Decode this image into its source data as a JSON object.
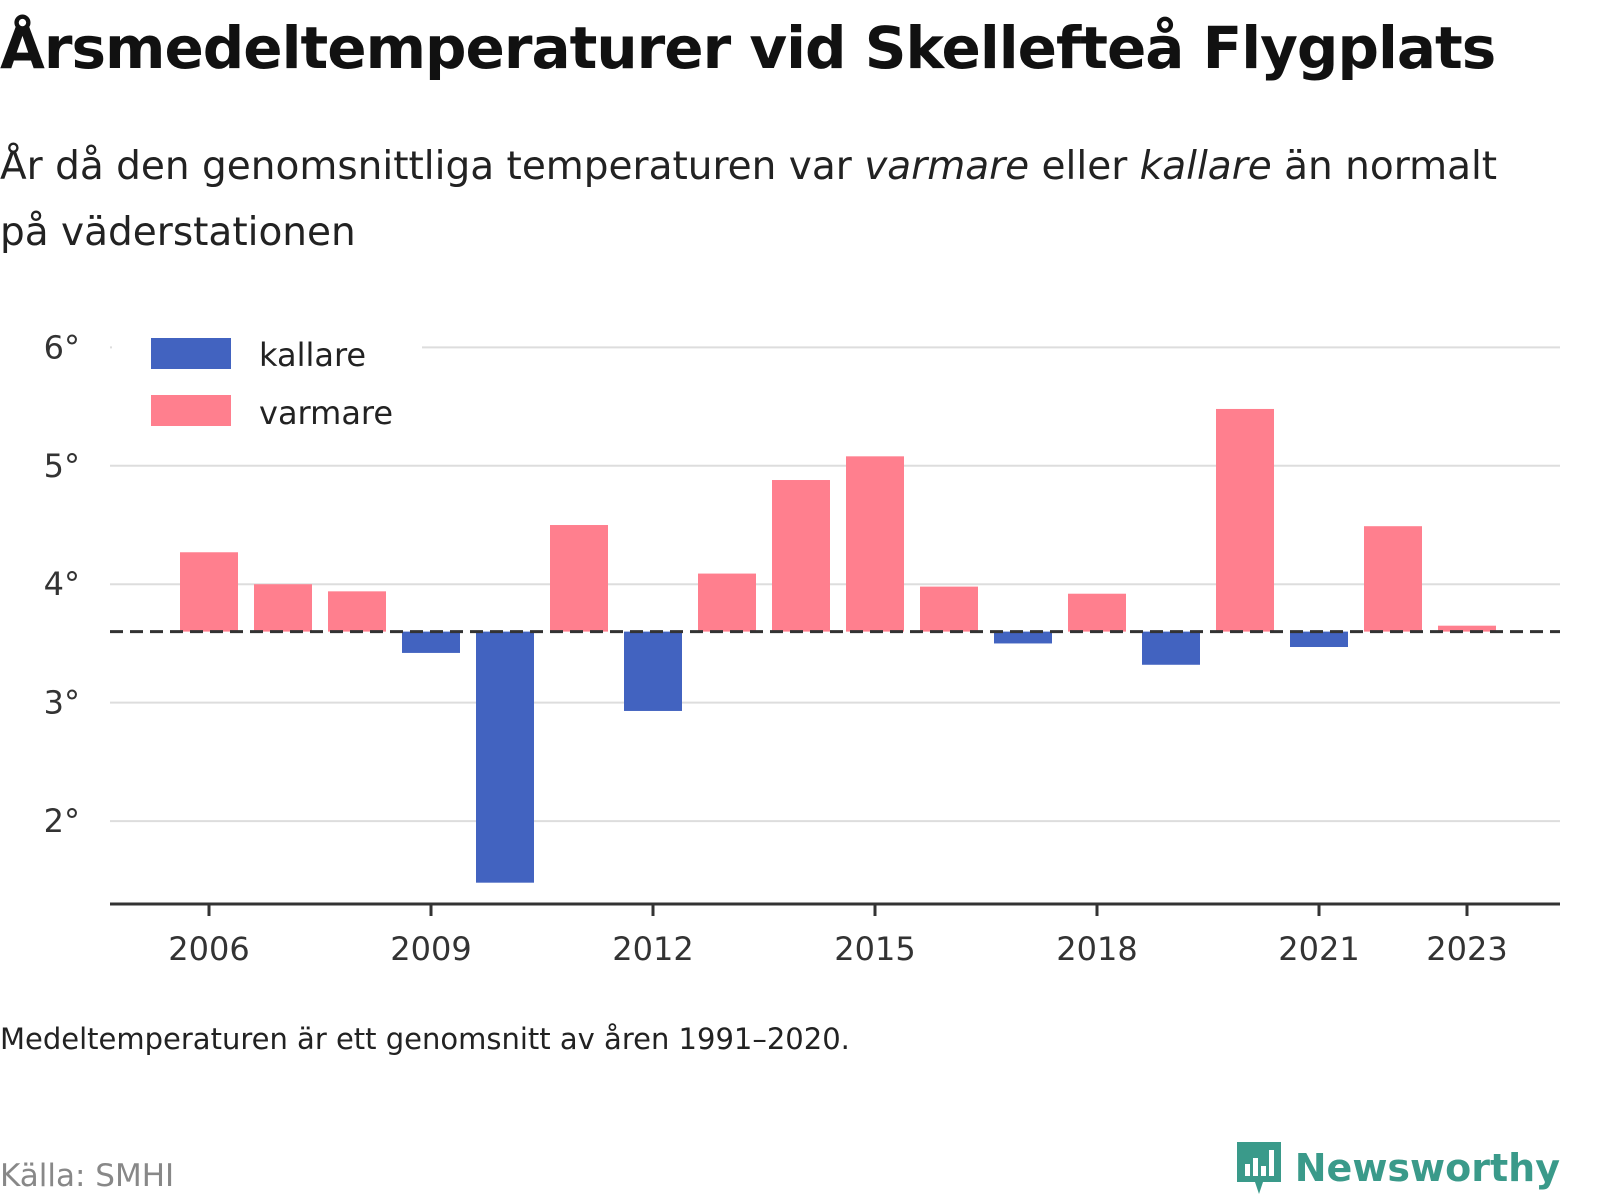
{
  "header": {
    "title": "Årsmedeltemperaturer vid Skellefteå Flygplats",
    "subtitle_part1": "År då den genomsnittliga temperaturen var ",
    "subtitle_em1": "varmare",
    "subtitle_part2": " eller ",
    "subtitle_em2": "kallare",
    "subtitle_part3": " än normalt på väderstationen"
  },
  "footer": {
    "note": "Medeltemperaturen är ett genomsnitt av åren 1991–2020.",
    "source": "Källa: SMHI",
    "brand": "Newsworthy"
  },
  "chart_data": {
    "type": "bar",
    "baseline": 3.6,
    "ylim": [
      1.3,
      6.4
    ],
    "yticks": [
      2,
      3,
      4,
      5,
      6
    ],
    "ytick_labels": [
      "2°",
      "3°",
      "4°",
      "5°",
      "6°"
    ],
    "xtick_labels": [
      "2006",
      "2009",
      "2012",
      "2015",
      "2018",
      "2021",
      "2023"
    ],
    "xticks": [
      2006,
      2009,
      2012,
      2015,
      2018,
      2021,
      2023
    ],
    "categories": [
      2006,
      2007,
      2008,
      2009,
      2010,
      2011,
      2012,
      2013,
      2014,
      2015,
      2016,
      2017,
      2018,
      2019,
      2020,
      2021,
      2022,
      2023
    ],
    "values": [
      4.27,
      4.0,
      3.94,
      3.42,
      1.48,
      4.5,
      2.93,
      4.09,
      4.88,
      5.08,
      3.98,
      3.5,
      3.92,
      3.32,
      5.48,
      3.47,
      4.49,
      3.65
    ],
    "legend": [
      {
        "label": "kallare",
        "color": "#4263c0"
      },
      {
        "label": "varmare",
        "color": "#ff7f8e"
      }
    ],
    "legend_position": "top-left",
    "grid": true,
    "colors": {
      "kallare": "#4263c0",
      "varmare": "#ff7f8e",
      "baseline": "#333333",
      "grid": "#dddddd",
      "axis": "#333333"
    }
  }
}
